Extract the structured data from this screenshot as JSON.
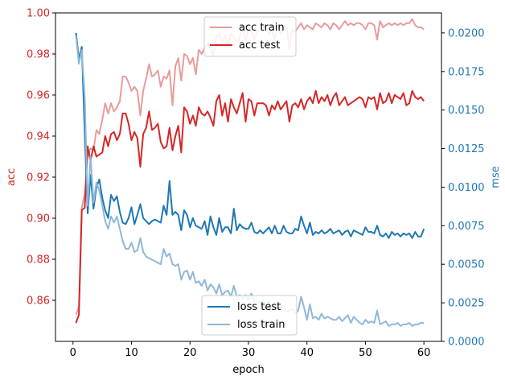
{
  "chart_data": {
    "type": "line",
    "title": "",
    "xlabel": "epoch",
    "ylabel_left": "acc",
    "ylabel_right": "mse",
    "xlim": [
      -3,
      63
    ],
    "ylim_left": [
      0.84,
      1.0
    ],
    "ylim_right": [
      0.0,
      0.0213
    ],
    "x_ticks": [
      0,
      10,
      20,
      30,
      40,
      50,
      60
    ],
    "y_ticks_left": [
      0.86,
      0.88,
      0.9,
      0.92,
      0.94,
      0.96,
      0.98,
      1.0
    ],
    "y_ticks_left_labels": [
      "0.86",
      "0.88",
      "0.90",
      "0.92",
      "0.94",
      "0.96",
      "0.98",
      "1.00"
    ],
    "y_ticks_right": [
      0.0,
      0.0025,
      0.005,
      0.0075,
      0.01,
      0.0125,
      0.015,
      0.0175,
      0.02
    ],
    "y_ticks_right_labels": [
      "0.0000",
      "0.0025",
      "0.0050",
      "0.0075",
      "0.0100",
      "0.0125",
      "0.0150",
      "0.0175",
      "0.0200"
    ],
    "grid": false,
    "colors": {
      "acc_axis": "#d62728",
      "mse_axis": "#1f77b4",
      "acc_train": "#e89b9b",
      "acc_test": "#d62728",
      "loss_test": "#1f77b4",
      "loss_train": "#8fb8d8"
    },
    "legend_top": {
      "placement": "upper-center",
      "entries": [
        "acc train",
        "acc test"
      ]
    },
    "legend_bottom": {
      "placement": "lower-center",
      "entries": [
        "loss test",
        "loss train"
      ]
    },
    "x": [
      0.5,
      1,
      1.5,
      2,
      2.5,
      3,
      3.5,
      4,
      4.5,
      5,
      5.5,
      6,
      6.5,
      7,
      7.5,
      8,
      8.5,
      9,
      9.5,
      10,
      10.5,
      11,
      11.5,
      12,
      12.5,
      13,
      13.5,
      14,
      14.5,
      15,
      15.5,
      16,
      16.5,
      17,
      17.5,
      18,
      18.5,
      19,
      19.5,
      20,
      20.5,
      21,
      21.5,
      22,
      22.5,
      23,
      23.5,
      24,
      24.5,
      25,
      25.5,
      26,
      26.5,
      27,
      27.5,
      28,
      28.5,
      29,
      29.5,
      30,
      30.5,
      31,
      31.5,
      32,
      32.5,
      33,
      33.5,
      34,
      34.5,
      35,
      35.5,
      36,
      36.5,
      37,
      37.5,
      38,
      38.5,
      39,
      39.5,
      40,
      40.5,
      41,
      41.5,
      42,
      42.5,
      43,
      43.5,
      44,
      44.5,
      45,
      45.5,
      46,
      46.5,
      47,
      47.5,
      48,
      48.5,
      49,
      49.5,
      50,
      50.5,
      51,
      51.5,
      52,
      52.5,
      53,
      53.5,
      54,
      54.5,
      55,
      55.5,
      56,
      56.5,
      57,
      57.5,
      58,
      58.5,
      59,
      59.5,
      60
    ],
    "series": [
      {
        "name": "acc train",
        "axis": "left",
        "values": [
          0.853,
          0.857,
          0.905,
          0.912,
          0.93,
          0.934,
          0.933,
          0.943,
          0.941,
          0.948,
          0.956,
          0.951,
          0.956,
          0.952,
          0.954,
          0.957,
          0.969,
          0.969,
          0.966,
          0.962,
          0.964,
          0.962,
          0.95,
          0.962,
          0.968,
          0.975,
          0.969,
          0.97,
          0.972,
          0.964,
          0.969,
          0.968,
          0.972,
          0.955,
          0.974,
          0.978,
          0.967,
          0.98,
          0.979,
          0.975,
          0.978,
          0.97,
          0.982,
          0.98,
          0.983,
          0.985,
          0.983,
          0.979,
          0.988,
          0.99,
          0.986,
          0.989,
          0.984,
          0.99,
          0.988,
          0.986,
          0.988,
          0.994,
          0.986,
          0.992,
          0.991,
          0.987,
          0.991,
          0.992,
          0.993,
          0.993,
          0.99,
          0.992,
          0.987,
          0.993,
          0.99,
          0.993,
          0.994,
          0.982,
          0.992,
          0.991,
          0.993,
          0.995,
          0.992,
          0.994,
          0.993,
          0.992,
          0.995,
          0.994,
          0.993,
          0.995,
          0.994,
          0.992,
          0.995,
          0.994,
          0.992,
          0.994,
          0.996,
          0.994,
          0.995,
          0.994,
          0.995,
          0.995,
          0.994,
          0.992,
          0.995,
          0.995,
          0.994,
          0.987,
          0.996,
          0.993,
          0.994,
          0.995,
          0.994,
          0.995,
          0.994,
          0.995,
          0.994,
          0.995,
          0.995,
          0.997,
          0.994,
          0.993,
          0.993,
          0.992
        ]
      },
      {
        "name": "acc test",
        "axis": "left",
        "values": [
          0.849,
          0.853,
          0.904,
          0.905,
          0.935,
          0.928,
          0.935,
          0.93,
          0.931,
          0.932,
          0.94,
          0.935,
          0.941,
          0.942,
          0.938,
          0.941,
          0.951,
          0.951,
          0.946,
          0.938,
          0.942,
          0.939,
          0.925,
          0.941,
          0.944,
          0.952,
          0.943,
          0.944,
          0.946,
          0.937,
          0.934,
          0.935,
          0.944,
          0.933,
          0.94,
          0.945,
          0.932,
          0.954,
          0.952,
          0.946,
          0.95,
          0.945,
          0.954,
          0.951,
          0.95,
          0.952,
          0.949,
          0.945,
          0.957,
          0.96,
          0.95,
          0.956,
          0.947,
          0.958,
          0.954,
          0.951,
          0.956,
          0.961,
          0.947,
          0.958,
          0.957,
          0.95,
          0.956,
          0.956,
          0.956,
          0.955,
          0.95,
          0.955,
          0.953,
          0.957,
          0.953,
          0.955,
          0.957,
          0.947,
          0.955,
          0.956,
          0.954,
          0.958,
          0.953,
          0.957,
          0.959,
          0.956,
          0.962,
          0.956,
          0.959,
          0.957,
          0.96,
          0.955,
          0.959,
          0.961,
          0.955,
          0.957,
          0.959,
          0.955,
          0.956,
          0.957,
          0.958,
          0.959,
          0.958,
          0.954,
          0.959,
          0.958,
          0.959,
          0.953,
          0.961,
          0.956,
          0.957,
          0.961,
          0.956,
          0.96,
          0.959,
          0.958,
          0.961,
          0.955,
          0.956,
          0.962,
          0.959,
          0.958,
          0.959,
          0.957
        ]
      },
      {
        "name": "loss test",
        "axis": "right",
        "values": [
          0.02,
          0.0183,
          0.0191,
          0.0135,
          0.0083,
          0.0108,
          0.0086,
          0.01,
          0.0105,
          0.0093,
          0.0085,
          0.008,
          0.0095,
          0.0091,
          0.0094,
          0.0084,
          0.0077,
          0.0076,
          0.008,
          0.0087,
          0.0076,
          0.0082,
          0.0089,
          0.008,
          0.0078,
          0.0076,
          0.0078,
          0.0079,
          0.0078,
          0.0077,
          0.0088,
          0.0082,
          0.0104,
          0.0082,
          0.0084,
          0.0082,
          0.0072,
          0.0085,
          0.0082,
          0.0074,
          0.008,
          0.0075,
          0.0074,
          0.0073,
          0.0078,
          0.0069,
          0.0081,
          0.0074,
          0.0069,
          0.008,
          0.0071,
          0.0074,
          0.0074,
          0.007,
          0.0086,
          0.0072,
          0.0076,
          0.0074,
          0.0073,
          0.0073,
          0.0077,
          0.0071,
          0.007,
          0.0072,
          0.007,
          0.0072,
          0.0074,
          0.007,
          0.0075,
          0.007,
          0.007,
          0.0075,
          0.0071,
          0.007,
          0.007,
          0.0073,
          0.0072,
          0.0081,
          0.0075,
          0.007,
          0.0077,
          0.0069,
          0.0071,
          0.007,
          0.0072,
          0.007,
          0.0071,
          0.0073,
          0.007,
          0.0071,
          0.0072,
          0.0069,
          0.0071,
          0.0072,
          0.0068,
          0.0072,
          0.0071,
          0.007,
          0.0069,
          0.0074,
          0.0071,
          0.0071,
          0.007,
          0.0075,
          0.0069,
          0.0068,
          0.007,
          0.0067,
          0.0071,
          0.0069,
          0.007,
          0.0068,
          0.007,
          0.0069,
          0.007,
          0.0067,
          0.0071,
          0.0068,
          0.0068,
          0.0073
        ]
      },
      {
        "name": "loss train",
        "axis": "right",
        "values": [
          0.0198,
          0.018,
          0.0189,
          0.0158,
          0.0088,
          0.012,
          0.009,
          0.0103,
          0.0098,
          0.0088,
          0.0078,
          0.0073,
          0.0081,
          0.0077,
          0.0081,
          0.0073,
          0.0065,
          0.006,
          0.006,
          0.0064,
          0.0058,
          0.0059,
          0.0067,
          0.0058,
          0.0055,
          0.0054,
          0.0053,
          0.0052,
          0.0051,
          0.005,
          0.006,
          0.0055,
          0.0057,
          0.005,
          0.0049,
          0.005,
          0.004,
          0.0045,
          0.0046,
          0.004,
          0.0045,
          0.0038,
          0.0039,
          0.0036,
          0.004,
          0.0033,
          0.0037,
          0.0035,
          0.0031,
          0.0037,
          0.003,
          0.0032,
          0.0033,
          0.0029,
          0.0036,
          0.0029,
          0.003,
          0.0028,
          0.003,
          0.0027,
          0.0031,
          0.0026,
          0.0026,
          0.0025,
          0.0026,
          0.0024,
          0.0026,
          0.0022,
          0.0025,
          0.0021,
          0.0022,
          0.0023,
          0.0019,
          0.002,
          0.0021,
          0.0018,
          0.002,
          0.0029,
          0.0022,
          0.0014,
          0.0024,
          0.0015,
          0.0016,
          0.0014,
          0.0018,
          0.0015,
          0.0016,
          0.0015,
          0.0014,
          0.0014,
          0.0016,
          0.0013,
          0.0015,
          0.0017,
          0.0012,
          0.0016,
          0.0014,
          0.0012,
          0.0011,
          0.0014,
          0.0012,
          0.0013,
          0.0012,
          0.002,
          0.0011,
          0.0012,
          0.0013,
          0.001,
          0.0011,
          0.0011,
          0.0012,
          0.001,
          0.0011,
          0.0011,
          0.0012,
          0.001,
          0.0011,
          0.0011,
          0.0012,
          0.0012
        ]
      }
    ]
  }
}
